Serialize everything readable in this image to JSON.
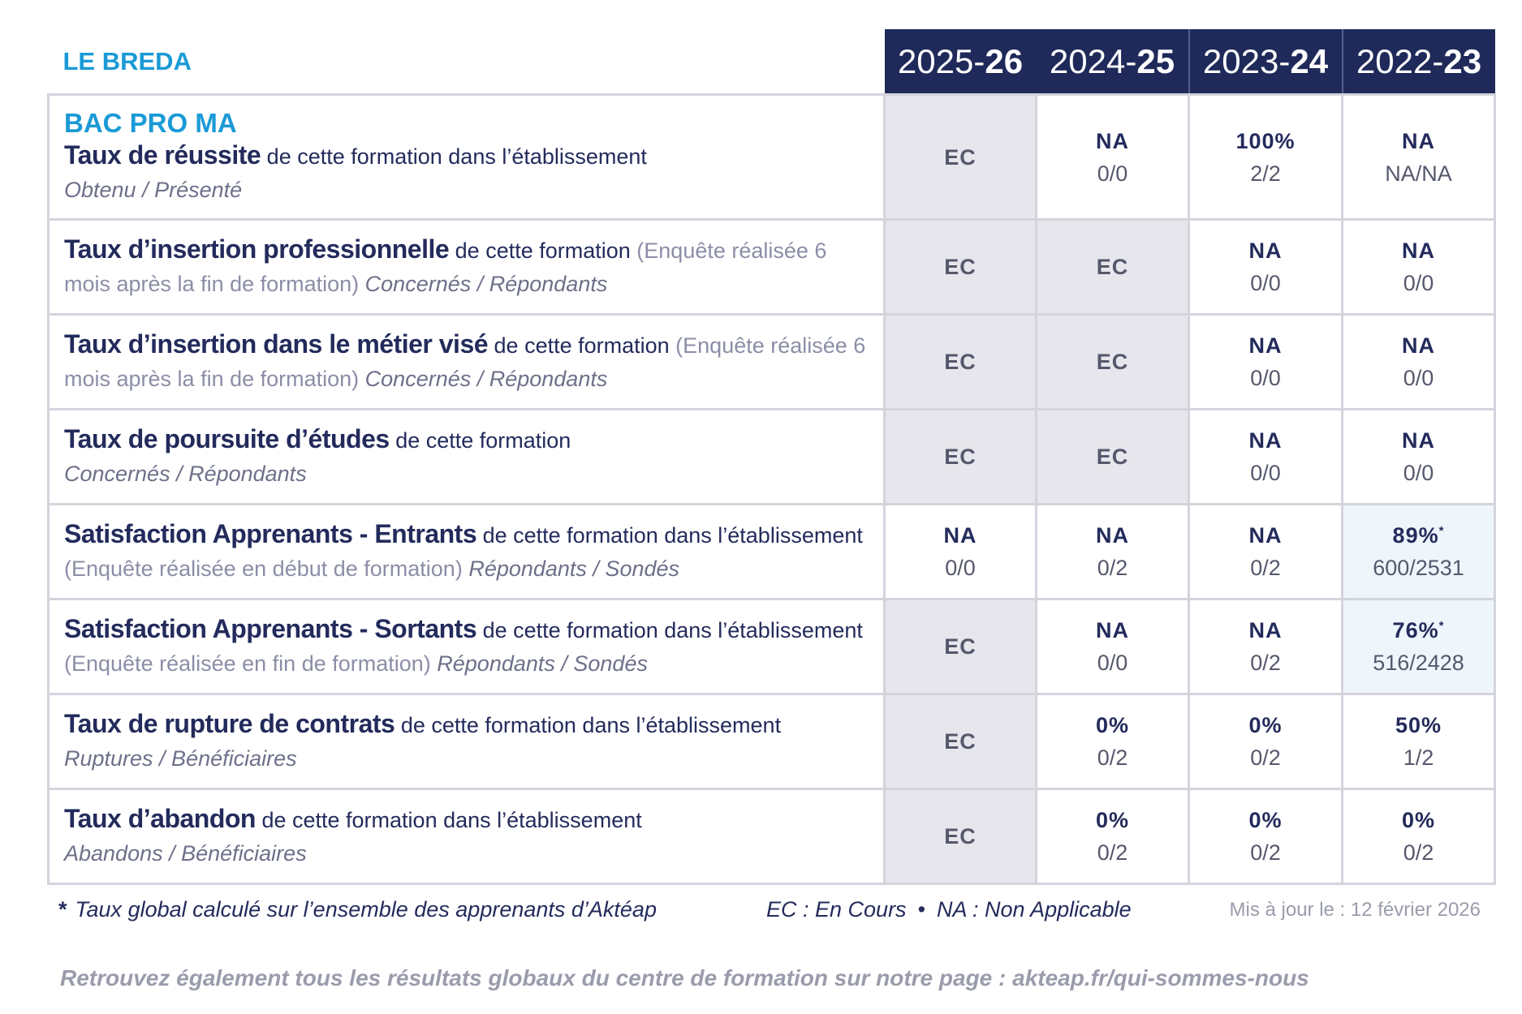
{
  "establishment": "LE BREDA",
  "formation": "BAC PRO MA",
  "years": [
    {
      "start": "2025-",
      "end": "26"
    },
    {
      "start": "2024-",
      "end": "25"
    },
    {
      "start": "2023-",
      "end": "24"
    },
    {
      "start": "2022-",
      "end": "23"
    }
  ],
  "rows": [
    {
      "label": {
        "bold": "Taux de réussite",
        "text": " de cette formation dans l’établissement",
        "measure": "Obtenu / Présenté"
      },
      "cells": [
        {
          "main": "EC"
        },
        {
          "main": "NA",
          "sub": "0/0"
        },
        {
          "main": "100%",
          "sub": "2/2"
        },
        {
          "main": "NA",
          "sub": "NA/NA"
        }
      ]
    },
    {
      "label": {
        "bold": "Taux d’insertion professionnelle",
        "text": " de cette formation ",
        "note": "(Enquête réalisée 6 mois après la fin de formation)",
        "measure": " Concernés / Répondants"
      },
      "cells": [
        {
          "main": "EC"
        },
        {
          "main": "EC"
        },
        {
          "main": "NA",
          "sub": "0/0"
        },
        {
          "main": "NA",
          "sub": "0/0"
        }
      ]
    },
    {
      "label": {
        "bold": "Taux d’insertion dans le métier visé",
        "text": " de cette formation ",
        "note": "(Enquête réalisée 6 mois après la fin de formation)",
        "measure": " Concernés / Répondants"
      },
      "cells": [
        {
          "main": "EC"
        },
        {
          "main": "EC"
        },
        {
          "main": "NA",
          "sub": "0/0"
        },
        {
          "main": "NA",
          "sub": "0/0"
        }
      ]
    },
    {
      "label": {
        "bold": "Taux de poursuite d’études",
        "text": " de cette formation",
        "measure": "Concernés / Répondants"
      },
      "cells": [
        {
          "main": "EC"
        },
        {
          "main": "EC"
        },
        {
          "main": "NA",
          "sub": "0/0"
        },
        {
          "main": "NA",
          "sub": "0/0"
        }
      ]
    },
    {
      "label": {
        "bold": "Satisfaction Apprenants - Entrants",
        "text": " de cette formation dans l’établissement ",
        "note": "(Enquête réalisée en début de formation)",
        "measure": " Répondants / Sondés"
      },
      "cells": [
        {
          "main": "NA",
          "sub": "0/0"
        },
        {
          "main": "NA",
          "sub": "0/2"
        },
        {
          "main": "NA",
          "sub": "0/2"
        },
        {
          "main": "89%",
          "mark": "*",
          "sub": "600/2531"
        }
      ]
    },
    {
      "label": {
        "bold": "Satisfaction Apprenants - Sortants",
        "text": " de cette formation dans l’établissement ",
        "note": "(Enquête réalisée en fin de formation)",
        "measure": " Répondants / Sondés"
      },
      "cells": [
        {
          "main": "EC"
        },
        {
          "main": "NA",
          "sub": "0/0"
        },
        {
          "main": "NA",
          "sub": "0/2"
        },
        {
          "main": "76%",
          "mark": "*",
          "sub": "516/2428"
        }
      ]
    },
    {
      "label": {
        "bold": "Taux de rupture de contrats",
        "text": " de cette formation dans l’établissement",
        "measure": "Ruptures / Bénéficiaires"
      },
      "cells": [
        {
          "main": "EC"
        },
        {
          "main": "0%",
          "sub": "0/2"
        },
        {
          "main": "0%",
          "sub": "0/2"
        },
        {
          "main": "50%",
          "sub": "1/2"
        }
      ]
    },
    {
      "label": {
        "bold": "Taux d’abandon",
        "text": " de cette formation dans l’établissement",
        "measure": "Abandons / Bénéficiaires"
      },
      "cells": [
        {
          "main": "EC"
        },
        {
          "main": "0%",
          "sub": "0/2"
        },
        {
          "main": "0%",
          "sub": "0/2"
        },
        {
          "main": "0%",
          "sub": "0/2"
        }
      ]
    }
  ],
  "footnote_mark": "*",
  "footnote": "Taux global calculé sur l’ensemble des apprenants d’Aktéap",
  "legend": [
    "EC : En Cours",
    "NA : Non Applicable"
  ],
  "updated": "Mis à jour le : 12 février 2026",
  "link_text": "Retrouvez également tous les résultats globaux du centre de formation sur notre page : akteap.fr/qui-sommes-nous"
}
